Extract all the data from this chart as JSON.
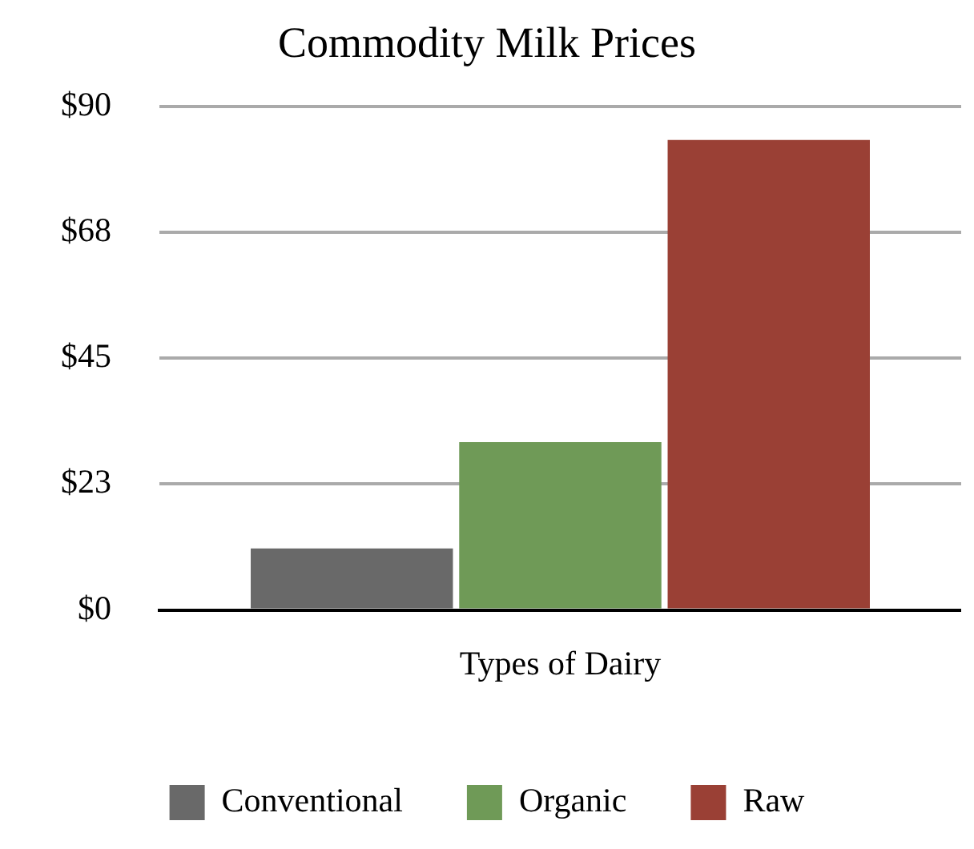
{
  "chart_data": {
    "type": "bar",
    "title": "Commodity Milk Prices",
    "categories": [
      "Types of Dairy"
    ],
    "series": [
      {
        "name": "Conventional",
        "color": "#696969",
        "values": [
          11
        ]
      },
      {
        "name": "Organic",
        "color": "#6f9a57",
        "values": [
          30
        ]
      },
      {
        "name": "Raw",
        "color": "#9a4035",
        "values": [
          84
        ]
      }
    ],
    "ylim": [
      0,
      90
    ],
    "yticks": [
      {
        "value": 0,
        "label": "$0"
      },
      {
        "value": 22.5,
        "label": "$23"
      },
      {
        "value": 45,
        "label": "$45"
      },
      {
        "value": 67.5,
        "label": "$68"
      },
      {
        "value": 90,
        "label": "$90"
      }
    ],
    "grid": "y",
    "legend": "bottom"
  }
}
